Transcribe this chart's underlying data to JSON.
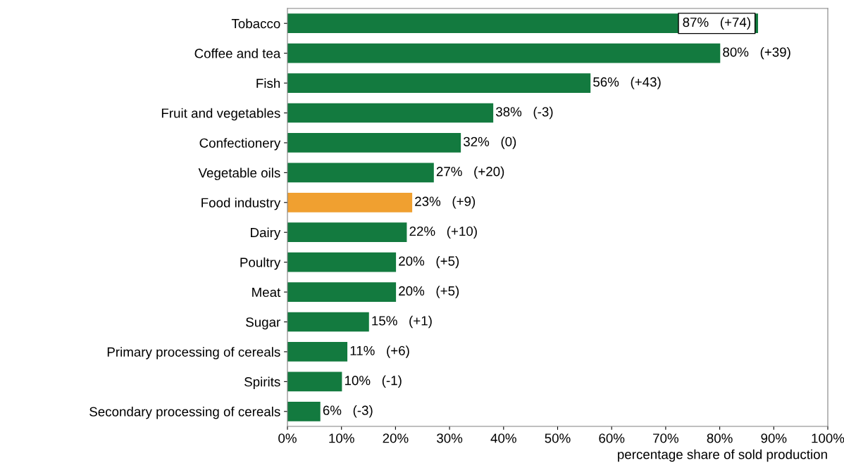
{
  "chart_data": {
    "type": "bar",
    "orientation": "horizontal",
    "categories": [
      "Tobacco",
      "Coffee and tea",
      "Fish",
      "Fruit and vegetables",
      "Confectionery",
      "Vegetable oils",
      "Food industry",
      "Dairy",
      "Poultry",
      "Meat",
      "Sugar",
      "Primary processing of cereals",
      "Spirits",
      "Secondary processing of cereals"
    ],
    "values": [
      87,
      80,
      56,
      38,
      32,
      27,
      23,
      22,
      20,
      20,
      15,
      11,
      10,
      6
    ],
    "colors": [
      "#137a3f",
      "#137a3f",
      "#137a3f",
      "#137a3f",
      "#137a3f",
      "#137a3f",
      "#f0a030",
      "#137a3f",
      "#137a3f",
      "#137a3f",
      "#137a3f",
      "#137a3f",
      "#137a3f",
      "#137a3f"
    ],
    "value_labels": [
      "87%   (+74)",
      "80%   (+39)",
      "56%   (+43)",
      "38%   (-3)",
      "32%   (0)",
      "27%   (+20)",
      "23%   (+9)",
      "22%   (+10)",
      "20%   (+5)",
      "20%   (+5)",
      "15%   (+1)",
      "11%   (+6)",
      "10%   (-1)",
      "6%   (-3)"
    ],
    "xlabel": "percentage share of sold production",
    "xlim": [
      0,
      100
    ],
    "xticks": [
      {
        "value": 0,
        "label": "0%"
      },
      {
        "value": 10,
        "label": "10%"
      },
      {
        "value": 20,
        "label": "20%"
      },
      {
        "value": 30,
        "label": "30%"
      },
      {
        "value": 40,
        "label": "40%"
      },
      {
        "value": 50,
        "label": "50%"
      },
      {
        "value": 60,
        "label": "60%"
      },
      {
        "value": 70,
        "label": "70%"
      },
      {
        "value": 80,
        "label": "80%"
      },
      {
        "value": 90,
        "label": "90%"
      },
      {
        "value": 100,
        "label": "100%"
      }
    ],
    "grid": false
  }
}
